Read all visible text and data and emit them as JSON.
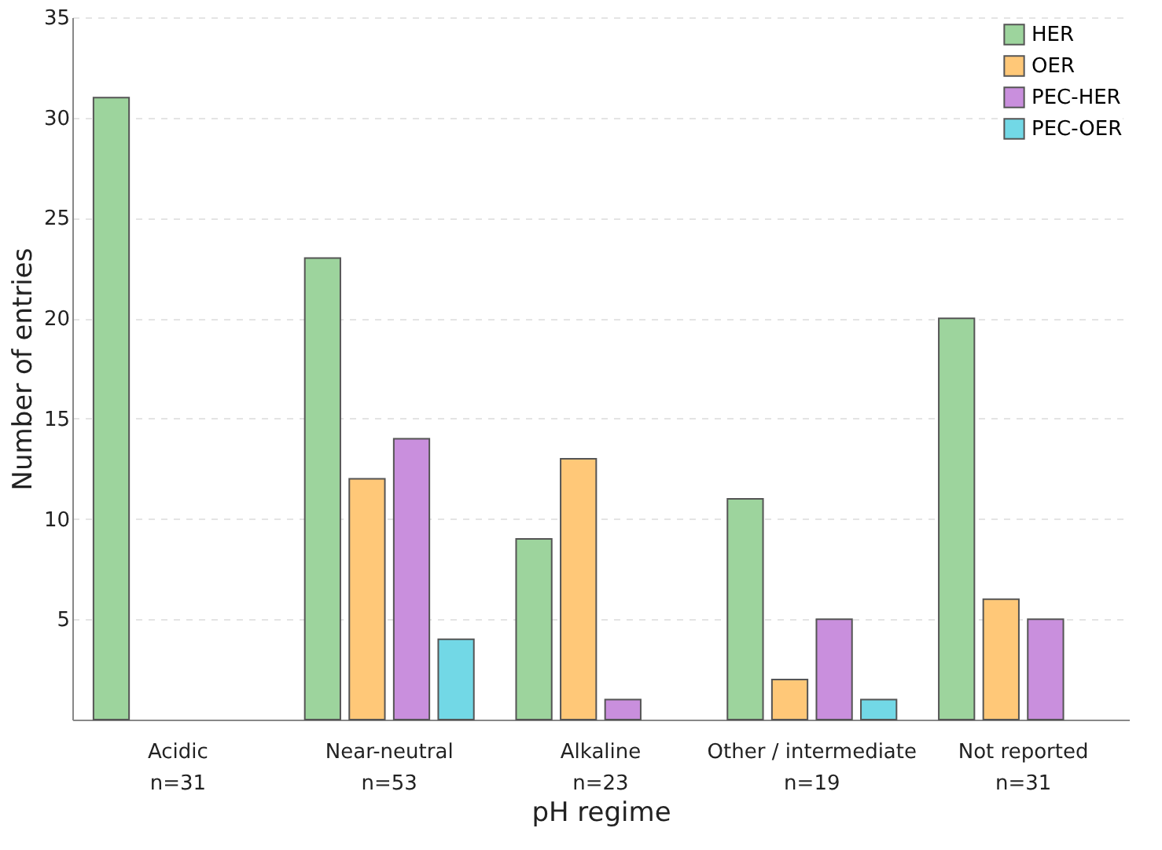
{
  "chart_data": {
    "type": "bar",
    "xlabel": "pH regime",
    "ylabel": "Number of entries",
    "categories": [
      "Acidic\nn=31",
      "Near-neutral\nn=53",
      "Alkaline\nn=23",
      "Other / intermediate\nn=19",
      "Not reported\nn=31"
    ],
    "series": [
      {
        "name": "HER",
        "color": "#9dd49d",
        "values": [
          31,
          23,
          9,
          11,
          20
        ]
      },
      {
        "name": "OER",
        "color": "#ffc878",
        "values": [
          null,
          12,
          13,
          2,
          6
        ]
      },
      {
        "name": "PEC-HER",
        "color": "#c98fdd",
        "values": [
          null,
          14,
          1,
          5,
          5
        ]
      },
      {
        "name": "PEC-OER",
        "color": "#72d8e6",
        "values": [
          null,
          4,
          null,
          1,
          null
        ]
      }
    ],
    "ylim": [
      0,
      35
    ],
    "yticks": [
      5,
      10,
      15,
      20,
      25,
      30,
      35
    ],
    "grid": "y",
    "legend": "top right"
  }
}
